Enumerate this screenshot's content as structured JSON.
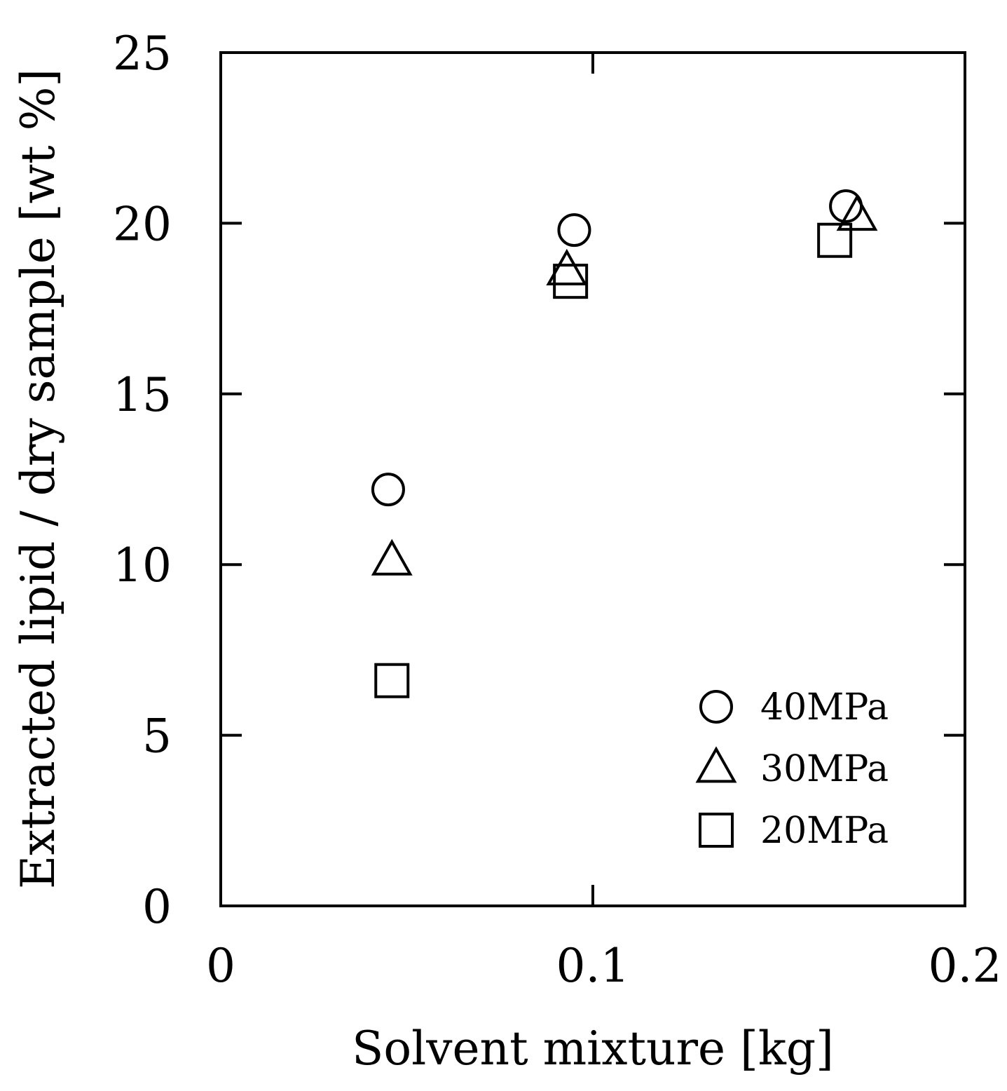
{
  "chart_data": {
    "type": "scatter",
    "title": "",
    "xlabel": "Solvent mixture [kg]",
    "ylabel": "Extracted lipid / dry sample [wt %]",
    "xlim": [
      0,
      0.2
    ],
    "ylim": [
      0,
      25
    ],
    "x_ticks": [
      0,
      0.1,
      0.2
    ],
    "x_tick_labels": [
      "0",
      "0.1",
      "0.2"
    ],
    "y_ticks": [
      0,
      5,
      10,
      15,
      20,
      25
    ],
    "y_tick_labels": [
      "0",
      "5",
      "10",
      "15",
      "20",
      "25"
    ],
    "grid": false,
    "legend_position": "bottom-right",
    "series": [
      {
        "name": "40MPa",
        "marker": "circle",
        "x": [
          0.045,
          0.095,
          0.168
        ],
        "y": [
          12.2,
          19.8,
          20.5
        ]
      },
      {
        "name": "30MPa",
        "marker": "triangle",
        "x": [
          0.046,
          0.093,
          0.171
        ],
        "y": [
          10.1,
          18.6,
          20.2
        ]
      },
      {
        "name": "20MPa",
        "marker": "square",
        "x": [
          0.046,
          0.094,
          0.165
        ],
        "y": [
          6.6,
          18.3,
          19.5
        ]
      }
    ]
  }
}
